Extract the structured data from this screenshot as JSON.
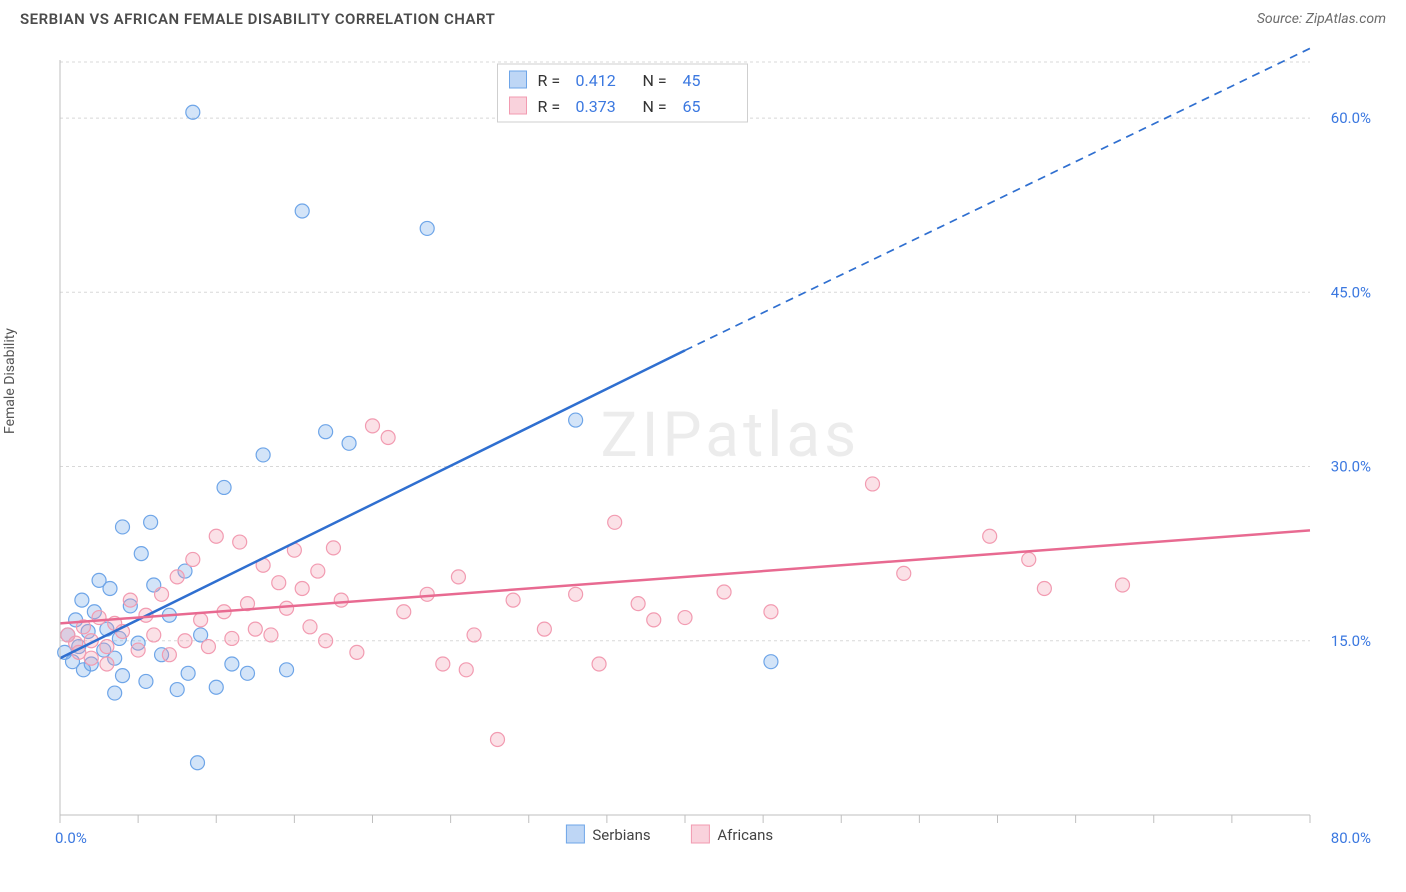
{
  "title": "SERBIAN VS AFRICAN FEMALE DISABILITY CORRELATION CHART",
  "source_label": "Source: ZipAtlas.com",
  "ylabel": "Female Disability",
  "watermark": "ZIPatlas",
  "chart": {
    "type": "scatter",
    "xlim": [
      0,
      80
    ],
    "ylim": [
      0,
      65
    ],
    "background_color": "#ffffff",
    "grid_color": "#d8d8d8",
    "x_ticks": [
      0,
      5,
      10,
      15,
      20,
      25,
      30,
      35,
      40,
      45,
      50,
      55,
      60,
      65,
      70,
      75,
      80
    ],
    "y_grid": [
      15,
      30,
      45,
      60
    ],
    "y_tick_labels": [
      "15.0%",
      "30.0%",
      "45.0%",
      "60.0%"
    ],
    "x_axis_labels": {
      "left": "0.0%",
      "right": "80.0%"
    },
    "marker_radius": 7,
    "marker_stroke_width": 1.2,
    "marker_fill_opacity": 0.3,
    "line_width": 2.5
  },
  "series": [
    {
      "name": "Serbians",
      "color": "#6ea5e8",
      "line_color": "#2f6fd0",
      "r_value": "0.412",
      "n_value": "45",
      "points": [
        [
          0.3,
          14.0
        ],
        [
          0.5,
          15.5
        ],
        [
          0.8,
          13.2
        ],
        [
          1.0,
          16.8
        ],
        [
          1.2,
          14.5
        ],
        [
          1.4,
          18.5
        ],
        [
          1.5,
          12.5
        ],
        [
          1.8,
          15.8
        ],
        [
          2.0,
          13.0
        ],
        [
          2.2,
          17.5
        ],
        [
          2.5,
          20.2
        ],
        [
          2.8,
          14.2
        ],
        [
          3.0,
          16.0
        ],
        [
          3.2,
          19.5
        ],
        [
          3.5,
          13.5
        ],
        [
          3.8,
          15.2
        ],
        [
          4.0,
          24.8
        ],
        [
          4.0,
          12.0
        ],
        [
          4.5,
          18.0
        ],
        [
          5.0,
          14.8
        ],
        [
          5.2,
          22.5
        ],
        [
          5.5,
          11.5
        ],
        [
          5.8,
          25.2
        ],
        [
          6.0,
          19.8
        ],
        [
          6.5,
          13.8
        ],
        [
          7.0,
          17.2
        ],
        [
          7.5,
          10.8
        ],
        [
          8.0,
          21.0
        ],
        [
          8.2,
          12.2
        ],
        [
          8.5,
          60.5
        ],
        [
          9.0,
          15.5
        ],
        [
          10.0,
          11.0
        ],
        [
          10.5,
          28.2
        ],
        [
          11.0,
          13.0
        ],
        [
          12.0,
          12.2
        ],
        [
          13.0,
          31.0
        ],
        [
          14.5,
          12.5
        ],
        [
          15.5,
          52.0
        ],
        [
          17.0,
          33.0
        ],
        [
          18.5,
          32.0
        ],
        [
          8.8,
          4.5
        ],
        [
          23.5,
          50.5
        ],
        [
          33.0,
          34.0
        ],
        [
          45.5,
          13.2
        ],
        [
          3.5,
          10.5
        ]
      ],
      "trend": {
        "x1": 0,
        "y1": 13.5,
        "x2": 40,
        "y2": 40.0,
        "dash_x1": 40,
        "dash_y1": 40.0,
        "dash_x2": 80,
        "dash_y2": 66.0
      }
    },
    {
      "name": "Africans",
      "color": "#f29bb1",
      "line_color": "#e86a91",
      "r_value": "0.373",
      "n_value": "65",
      "points": [
        [
          0.5,
          15.5
        ],
        [
          1.0,
          14.8
        ],
        [
          1.5,
          16.2
        ],
        [
          2.0,
          15.0
        ],
        [
          2.5,
          17.0
        ],
        [
          3.0,
          14.5
        ],
        [
          3.5,
          16.5
        ],
        [
          4.0,
          15.8
        ],
        [
          4.5,
          18.5
        ],
        [
          5.0,
          14.2
        ],
        [
          5.5,
          17.2
        ],
        [
          6.0,
          15.5
        ],
        [
          6.5,
          19.0
        ],
        [
          7.0,
          13.8
        ],
        [
          7.5,
          20.5
        ],
        [
          8.0,
          15.0
        ],
        [
          8.5,
          22.0
        ],
        [
          9.0,
          16.8
        ],
        [
          9.5,
          14.5
        ],
        [
          10.0,
          24.0
        ],
        [
          10.5,
          17.5
        ],
        [
          11.0,
          15.2
        ],
        [
          11.5,
          23.5
        ],
        [
          12.0,
          18.2
        ],
        [
          12.5,
          16.0
        ],
        [
          13.0,
          21.5
        ],
        [
          13.5,
          15.5
        ],
        [
          14.0,
          20.0
        ],
        [
          14.5,
          17.8
        ],
        [
          15.0,
          22.8
        ],
        [
          15.5,
          19.5
        ],
        [
          16.0,
          16.2
        ],
        [
          16.5,
          21.0
        ],
        [
          17.0,
          15.0
        ],
        [
          17.5,
          23.0
        ],
        [
          18.0,
          18.5
        ],
        [
          19.0,
          14.0
        ],
        [
          20.0,
          33.5
        ],
        [
          21.0,
          32.5
        ],
        [
          22.0,
          17.5
        ],
        [
          23.5,
          19.0
        ],
        [
          24.5,
          13.0
        ],
        [
          25.5,
          20.5
        ],
        [
          26.0,
          12.5
        ],
        [
          26.5,
          15.5
        ],
        [
          28.0,
          6.5
        ],
        [
          29.0,
          18.5
        ],
        [
          31.0,
          16.0
        ],
        [
          33.0,
          19.0
        ],
        [
          34.5,
          13.0
        ],
        [
          35.5,
          25.2
        ],
        [
          37.0,
          18.2
        ],
        [
          38.0,
          16.8
        ],
        [
          40.0,
          17.0
        ],
        [
          42.5,
          19.2
        ],
        [
          45.5,
          17.5
        ],
        [
          52.0,
          28.5
        ],
        [
          54.0,
          20.8
        ],
        [
          59.5,
          24.0
        ],
        [
          62.0,
          22.0
        ],
        [
          63.0,
          19.5
        ],
        [
          68.0,
          19.8
        ],
        [
          3.0,
          13.0
        ],
        [
          2.0,
          13.5
        ],
        [
          1.2,
          14.0
        ]
      ],
      "trend": {
        "x1": 0,
        "y1": 16.5,
        "x2": 80,
        "y2": 24.5
      }
    }
  ],
  "bottom_legend": [
    {
      "swatch": "#6ea5e8",
      "label": "Serbians"
    },
    {
      "swatch": "#f29bb1",
      "label": "Africans"
    }
  ],
  "stat_legend_labels": {
    "r_prefix": "R =",
    "n_prefix": "N ="
  }
}
